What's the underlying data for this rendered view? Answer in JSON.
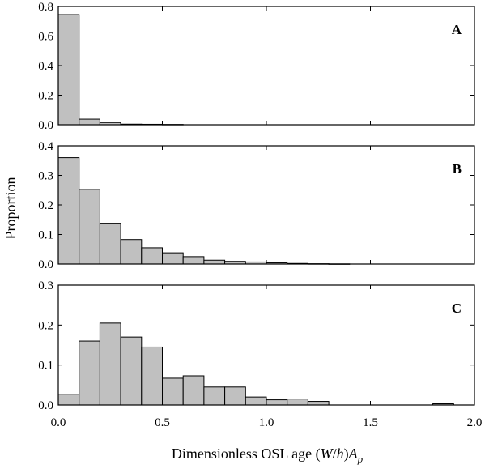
{
  "chart_data": {
    "type": "bar",
    "shared_xlabel": "Dimensionless OSL age (W/h)A_p",
    "shared_ylabel": "Proportion",
    "xlim": [
      0,
      2.0
    ],
    "xticks": [
      "0.0",
      "0.5",
      "1.0",
      "1.5",
      "2.0"
    ],
    "bin_width": 0.1,
    "panels": [
      {
        "label": "A",
        "ylim": [
          0,
          0.8
        ],
        "yticks": [
          "0.0",
          "0.2",
          "0.4",
          "0.6",
          "0.8"
        ],
        "bins": [
          0.0,
          0.1,
          0.2,
          0.3,
          0.4,
          0.5
        ],
        "values": [
          0.745,
          0.038,
          0.015,
          0.004,
          0.003,
          0.002
        ]
      },
      {
        "label": "B",
        "ylim": [
          0,
          0.4
        ],
        "yticks": [
          "0.0",
          "0.1",
          "0.2",
          "0.3",
          "0.4"
        ],
        "bins": [
          0.0,
          0.1,
          0.2,
          0.3,
          0.4,
          0.5,
          0.6,
          0.7,
          0.8,
          0.9,
          1.0,
          1.1,
          1.2,
          1.3
        ],
        "values": [
          0.36,
          0.252,
          0.138,
          0.083,
          0.055,
          0.038,
          0.025,
          0.013,
          0.009,
          0.007,
          0.004,
          0.002,
          0.001,
          0.0005
        ]
      },
      {
        "label": "C",
        "ylim": [
          0,
          0.3
        ],
        "yticks": [
          "0.0",
          "0.1",
          "0.2",
          "0.3"
        ],
        "bins": [
          0.0,
          0.1,
          0.2,
          0.3,
          0.4,
          0.5,
          0.6,
          0.7,
          0.8,
          0.9,
          1.0,
          1.1,
          1.2,
          1.8
        ],
        "values": [
          0.027,
          0.16,
          0.205,
          0.17,
          0.145,
          0.067,
          0.073,
          0.045,
          0.045,
          0.02,
          0.013,
          0.015,
          0.009,
          0.003
        ]
      }
    ]
  }
}
